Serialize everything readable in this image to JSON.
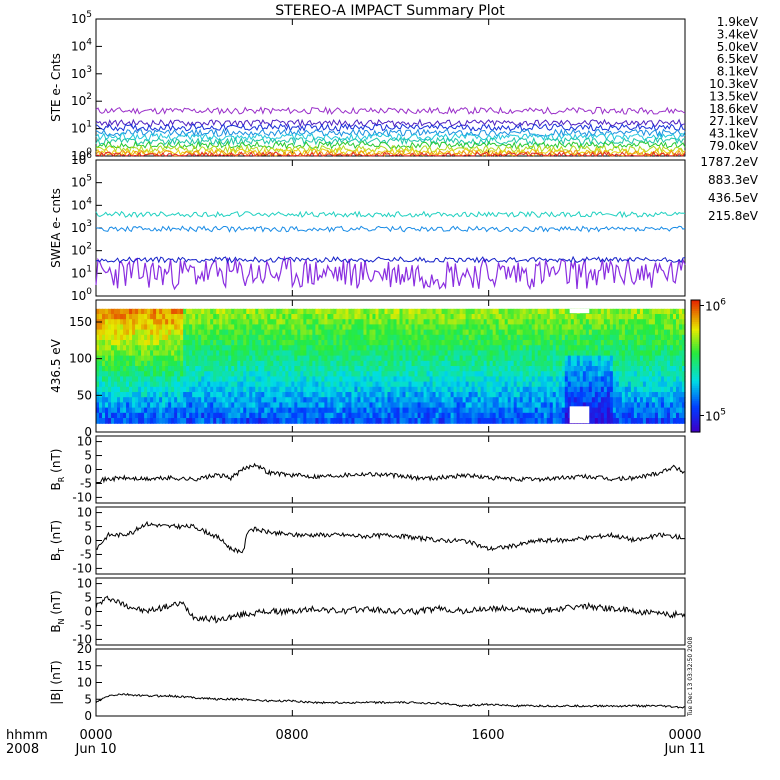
{
  "title": "STEREO-A IMPACT Summary Plot",
  "stamp": "Tue Dec 13 03:32:50 2008",
  "time_axis": {
    "row1": [
      "0000",
      "0800",
      "1600",
      "0000"
    ],
    "row2": [
      "Jun 10",
      "",
      "",
      "Jun 11"
    ],
    "left_row1": "hhmm",
    "left_row2": "2008",
    "range_hours": [
      0,
      24
    ],
    "tick_hours": [
      0,
      8,
      16,
      24
    ]
  },
  "chart_data": [
    {
      "type": "line",
      "ylabel": "STE e- Cnts",
      "yscale": "log",
      "ylim": [
        1,
        100000
      ],
      "yticks": [
        "10^0",
        "10^1",
        "10^2",
        "10^3",
        "10^4",
        "10^5"
      ],
      "series": [
        {
          "name": "1.9keV",
          "color": "#9a2fc9",
          "level": 45
        },
        {
          "name": "3.4keV",
          "color": "#5020c0",
          "level": 16
        },
        {
          "name": "5.0keV",
          "color": "#1730d8",
          "level": 11
        },
        {
          "name": "6.5keV",
          "color": "#1a8fe0",
          "level": 7
        },
        {
          "name": "8.1keV",
          "color": "#22c8dc",
          "level": 5
        },
        {
          "name": "10.3keV",
          "color": "#20c4a8",
          "level": 3.5
        },
        {
          "name": "13.5keV",
          "color": "#28c830",
          "level": 2.5
        },
        {
          "name": "18.6keV",
          "color": "#b4d820",
          "level": 1.8
        },
        {
          "name": "27.1keV",
          "color": "#e8d010",
          "level": 1.4
        },
        {
          "name": "43.1keV",
          "color": "#f09010",
          "level": 1.2
        },
        {
          "name": "79.0keV",
          "color": "#e02828",
          "level": 1.05
        }
      ]
    },
    {
      "type": "line",
      "ylabel": "SWEA e- cnts",
      "yscale": "log",
      "ylim": [
        1,
        1000000
      ],
      "yticks": [
        "10^0",
        "10^1",
        "10^2",
        "10^3",
        "10^4",
        "10^5",
        "10^6"
      ],
      "series": [
        {
          "name": "1787.2eV",
          "color": "#8a2ee0",
          "level": 10
        },
        {
          "name": "883.3eV",
          "color": "#1420c8",
          "level": 40
        },
        {
          "name": "436.5eV",
          "color": "#1a8ce6",
          "level": 900
        },
        {
          "name": "215.8eV",
          "color": "#20d0c0",
          "level": 4000
        }
      ]
    },
    {
      "type": "heatmap",
      "ylabel": "436.5 eV",
      "ylim": [
        0,
        180
      ],
      "yticks": [
        0,
        50,
        100,
        150
      ],
      "colorbar_ticks": [
        "10^6",
        "10^5"
      ],
      "colorbar_log_range": [
        4.85,
        6.05
      ]
    },
    {
      "type": "line",
      "ylabel": "B_R (nT)",
      "ylim": [
        -12,
        12
      ],
      "yticks": [
        -10,
        -5,
        0,
        5,
        10
      ],
      "x_hours": [
        0,
        1,
        2,
        3,
        4,
        5,
        5.5,
        6,
        6.5,
        7,
        8,
        9,
        10,
        11,
        12,
        13,
        14,
        15,
        16,
        17,
        18,
        19,
        20,
        21,
        22,
        23,
        23.5,
        24
      ],
      "y": [
        -4,
        -3,
        -3.5,
        -3,
        -3.5,
        -2,
        -3,
        0,
        2,
        -1,
        -2,
        -2.5,
        -2,
        -1.5,
        -2,
        -3,
        -3,
        -2,
        -3,
        -3.5,
        -3.5,
        -3,
        -2.5,
        -3.5,
        -3,
        -1,
        1,
        -1
      ]
    },
    {
      "type": "line",
      "ylabel": "B_T (nT)",
      "ylim": [
        -12,
        12
      ],
      "yticks": [
        -10,
        -5,
        0,
        5,
        10
      ],
      "x_hours": [
        0,
        0.5,
        1,
        1.5,
        2,
        3,
        4,
        5,
        5.5,
        6,
        6.2,
        6.5,
        7,
        8,
        9,
        10,
        11,
        12,
        13,
        14,
        15,
        16,
        17,
        18,
        19,
        20,
        21,
        22,
        23,
        24
      ],
      "y": [
        -3,
        2,
        2,
        3,
        6,
        5,
        5,
        1,
        -3,
        -4,
        4,
        4,
        3,
        2,
        2,
        2,
        1.5,
        2,
        1,
        0,
        0,
        -3,
        -2,
        0,
        0,
        1,
        2,
        0,
        2,
        1
      ]
    },
    {
      "type": "line",
      "ylabel": "B_N (nT)",
      "ylim": [
        -12,
        12
      ],
      "yticks": [
        -10,
        -5,
        0,
        5,
        10
      ],
      "x_hours": [
        0,
        0.5,
        1,
        2,
        3,
        3.5,
        4,
        5,
        6,
        7,
        8,
        9,
        10,
        11,
        12,
        13,
        14,
        15,
        16,
        17,
        18,
        19,
        20,
        21,
        22,
        23,
        24
      ],
      "y": [
        2,
        5,
        3,
        0,
        2,
        3,
        -2,
        -3,
        -1,
        0,
        0,
        1,
        0,
        1,
        0,
        0,
        1,
        0,
        1,
        1,
        0,
        1,
        2,
        1,
        0,
        -1,
        -1
      ]
    },
    {
      "type": "line",
      "ylabel": "|B| (nT)",
      "ylim": [
        0,
        20
      ],
      "yticks": [
        0,
        5,
        10,
        15,
        20
      ],
      "x_hours": [
        0,
        0.5,
        1,
        2,
        3,
        4,
        5,
        6,
        7,
        8,
        9,
        10,
        11,
        12,
        13,
        14,
        15,
        16,
        17,
        18,
        19,
        20,
        21,
        22,
        23,
        24
      ],
      "y": [
        4,
        6,
        6.5,
        6,
        6,
        5.5,
        5,
        5,
        4.5,
        4.5,
        4,
        4,
        4,
        4,
        4,
        3.8,
        3,
        3.5,
        3,
        3,
        3,
        3,
        3,
        3,
        3,
        2.5
      ]
    }
  ]
}
